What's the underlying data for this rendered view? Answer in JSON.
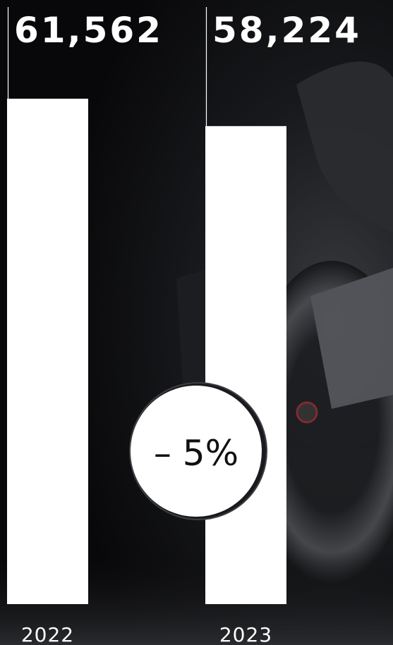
{
  "chart_data": {
    "type": "bar",
    "categories": [
      "2022",
      "2023"
    ],
    "values": [
      61562,
      58224
    ],
    "value_labels": [
      "61,562",
      "58,224"
    ],
    "color": "#ffffff",
    "annotation": "– 5%"
  }
}
